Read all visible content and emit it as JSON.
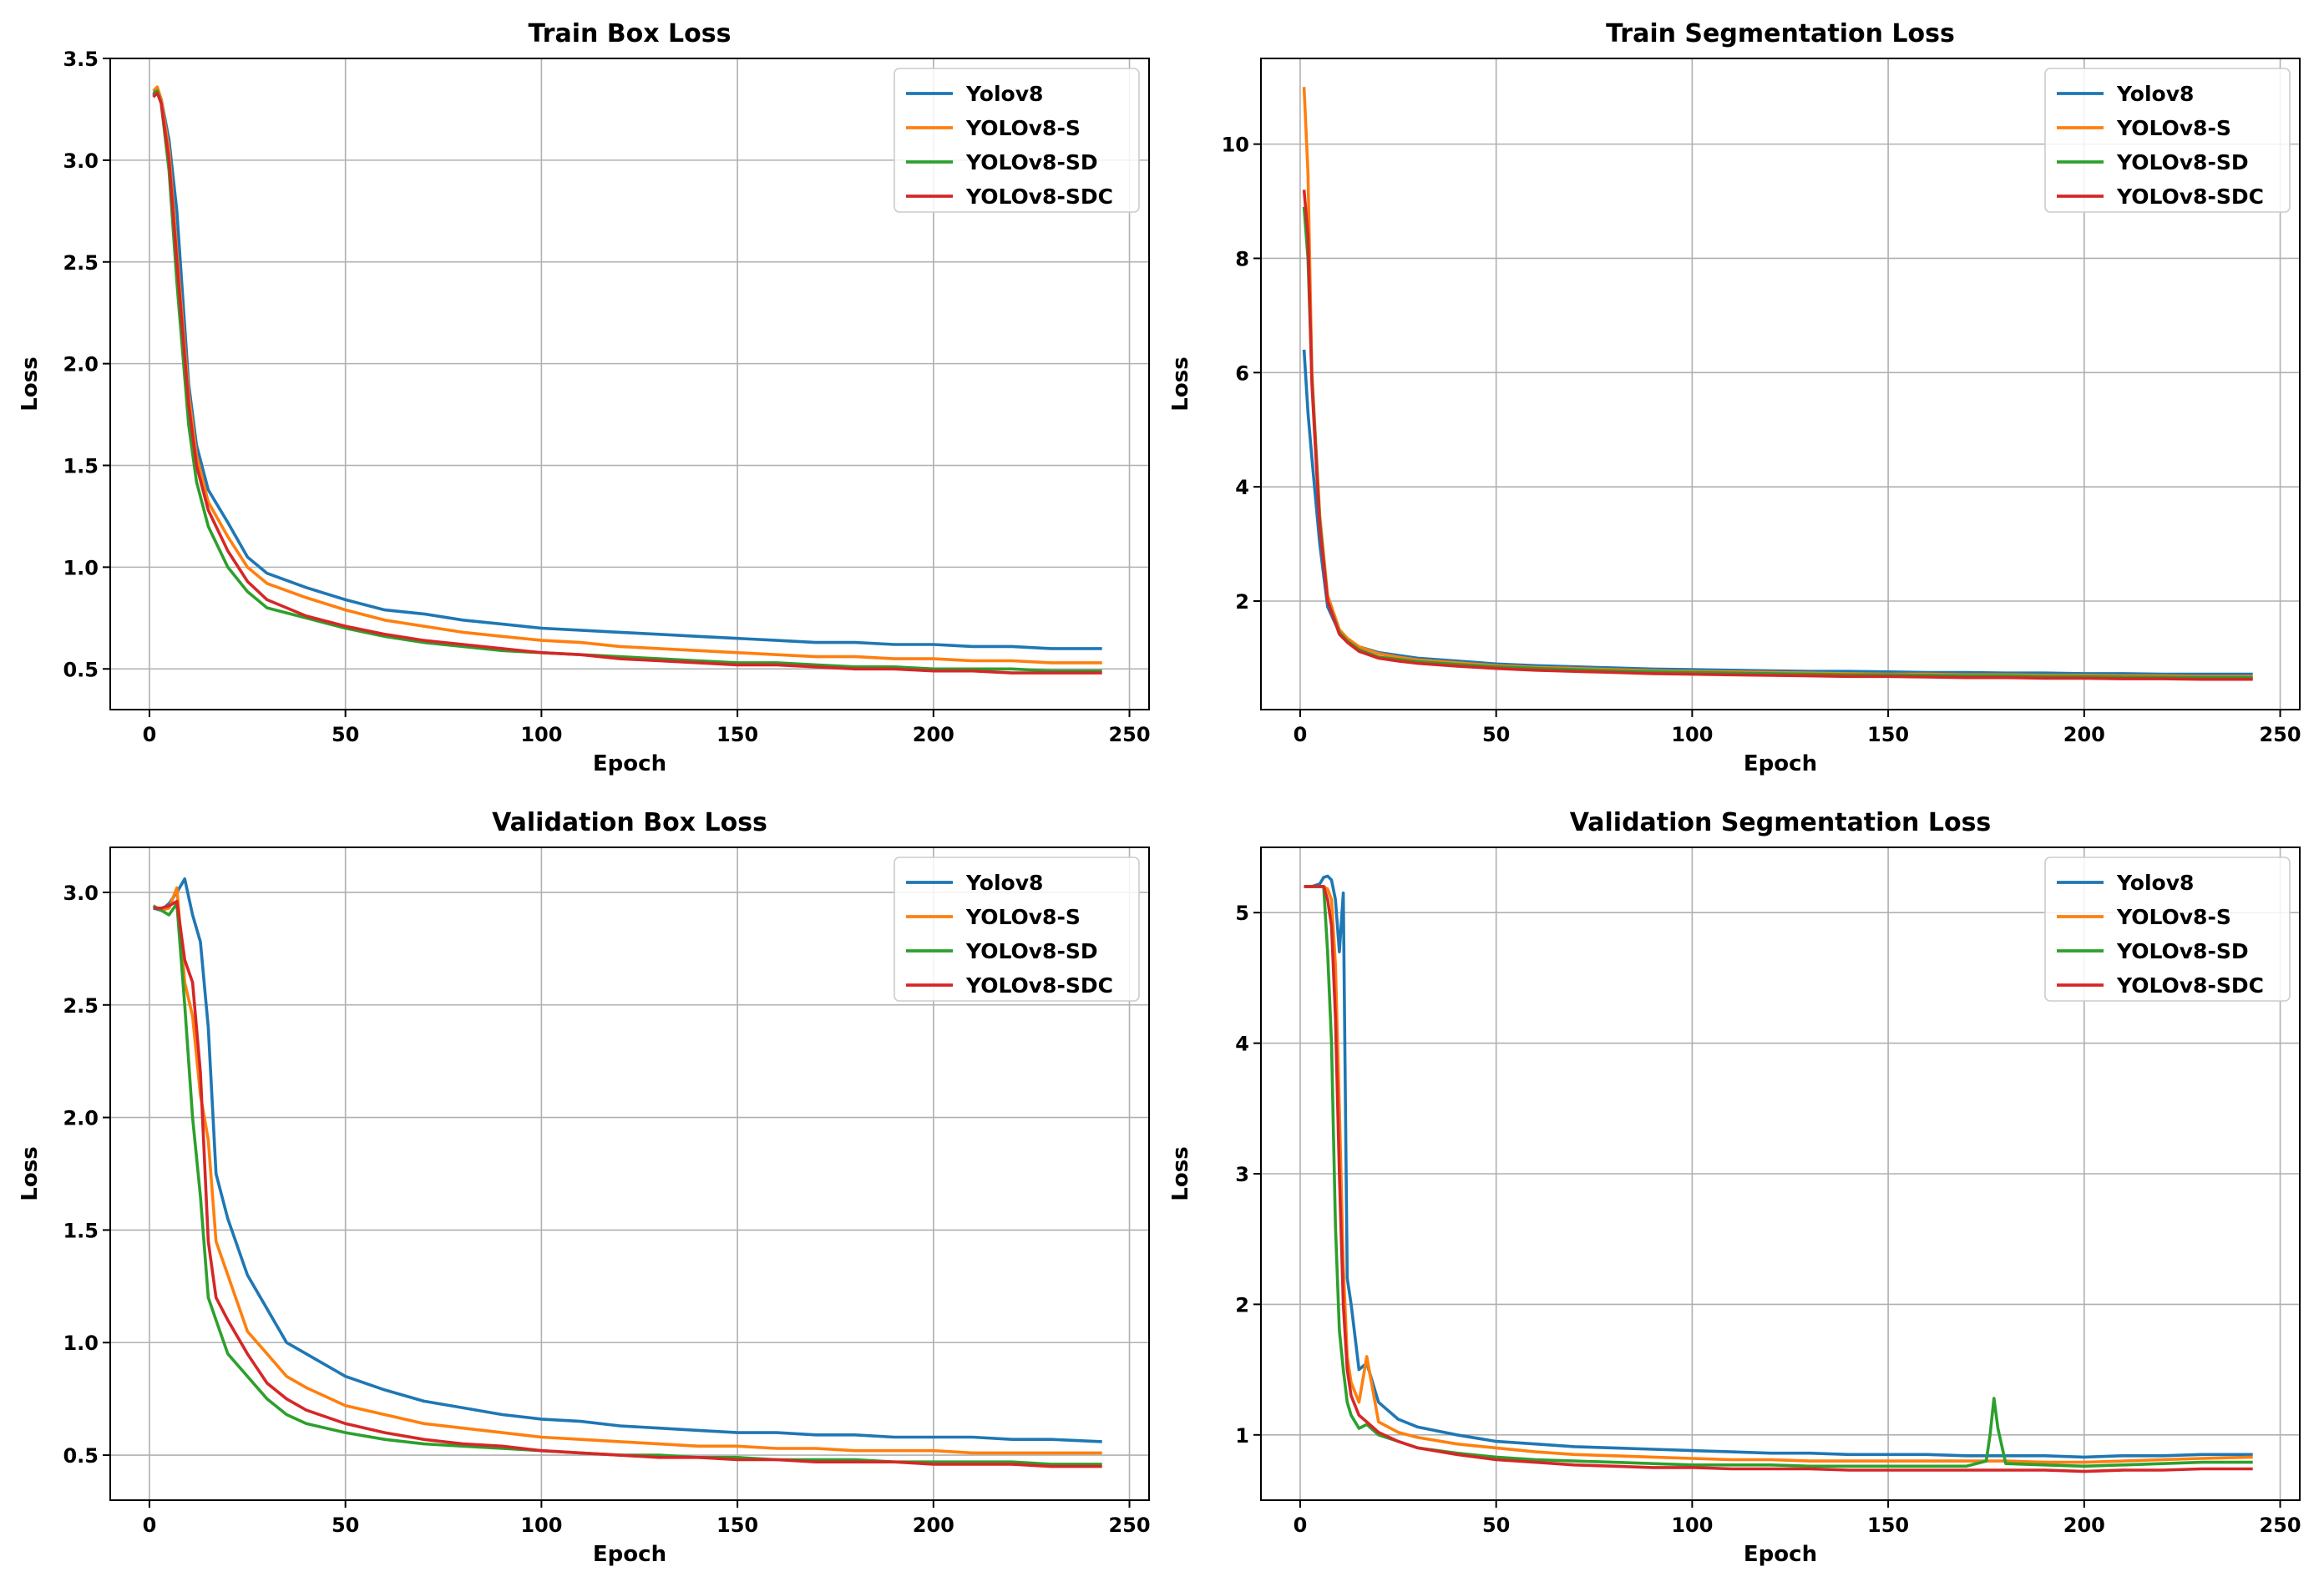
{
  "figure": {
    "colors": {
      "Yolov8": "#1f77b4",
      "YOLOv8-S": "#ff7f0e",
      "YOLOv8-SD": "#2ca02c",
      "YOLOv8-SDC": "#d62728"
    }
  },
  "chart_data": [
    {
      "type": "line",
      "title": "Train Box Loss",
      "xlabel": "Epoch",
      "ylabel": "Loss",
      "xlim": [
        -10,
        255
      ],
      "ylim": [
        0.3,
        3.5
      ],
      "xticks": [
        0,
        50,
        100,
        150,
        200,
        250
      ],
      "yticks": [
        0.5,
        1.0,
        1.5,
        2.0,
        2.5,
        3.0,
        3.5
      ],
      "ytick_labels": [
        "0.5",
        "1.0",
        "1.5",
        "2.0",
        "2.5",
        "3.0",
        "3.5"
      ],
      "grid": true,
      "legend": "top-right",
      "x": [
        1,
        2,
        3,
        5,
        7,
        10,
        12,
        15,
        20,
        25,
        30,
        40,
        50,
        60,
        70,
        80,
        90,
        100,
        110,
        120,
        130,
        140,
        150,
        160,
        170,
        180,
        190,
        200,
        210,
        220,
        230,
        243
      ],
      "series": [
        {
          "name": "Yolov8",
          "values": [
            3.32,
            3.35,
            3.3,
            3.1,
            2.75,
            1.9,
            1.6,
            1.38,
            1.22,
            1.05,
            0.97,
            0.9,
            0.84,
            0.79,
            0.77,
            0.74,
            0.72,
            0.7,
            0.69,
            0.68,
            0.67,
            0.66,
            0.65,
            0.64,
            0.63,
            0.63,
            0.62,
            0.62,
            0.61,
            0.61,
            0.6,
            0.6
          ]
        },
        {
          "name": "YOLOv8-S",
          "values": [
            3.34,
            3.36,
            3.3,
            3.05,
            2.55,
            1.85,
            1.55,
            1.32,
            1.15,
            1.0,
            0.92,
            0.85,
            0.79,
            0.74,
            0.71,
            0.68,
            0.66,
            0.64,
            0.63,
            0.61,
            0.6,
            0.59,
            0.58,
            0.57,
            0.56,
            0.56,
            0.55,
            0.55,
            0.54,
            0.54,
            0.53,
            0.53
          ]
        },
        {
          "name": "YOLOv8-SD",
          "values": [
            3.33,
            3.34,
            3.28,
            2.95,
            2.4,
            1.7,
            1.42,
            1.2,
            1.0,
            0.88,
            0.8,
            0.75,
            0.7,
            0.66,
            0.63,
            0.61,
            0.59,
            0.58,
            0.57,
            0.56,
            0.55,
            0.54,
            0.53,
            0.53,
            0.52,
            0.51,
            0.51,
            0.5,
            0.5,
            0.5,
            0.49,
            0.49
          ]
        },
        {
          "name": "YOLOv8-SDC",
          "values": [
            3.31,
            3.33,
            3.28,
            3.0,
            2.5,
            1.8,
            1.5,
            1.28,
            1.08,
            0.93,
            0.84,
            0.76,
            0.71,
            0.67,
            0.64,
            0.62,
            0.6,
            0.58,
            0.57,
            0.55,
            0.54,
            0.53,
            0.52,
            0.52,
            0.51,
            0.5,
            0.5,
            0.49,
            0.49,
            0.48,
            0.48,
            0.48
          ]
        }
      ]
    },
    {
      "type": "line",
      "title": "Train Segmentation Loss",
      "xlabel": "Epoch",
      "ylabel": "Loss",
      "xlim": [
        -10,
        255
      ],
      "ylim": [
        0.1,
        11.5
      ],
      "xticks": [
        0,
        50,
        100,
        150,
        200,
        250
      ],
      "yticks": [
        2,
        4,
        6,
        8,
        10
      ],
      "ytick_labels": [
        "2",
        "4",
        "6",
        "8",
        "10"
      ],
      "grid": true,
      "legend": "top-right",
      "x": [
        1,
        2,
        3,
        5,
        7,
        10,
        12,
        15,
        20,
        25,
        30,
        40,
        50,
        60,
        70,
        80,
        90,
        100,
        110,
        120,
        130,
        140,
        150,
        160,
        170,
        180,
        190,
        200,
        210,
        220,
        230,
        243
      ],
      "series": [
        {
          "name": "Yolov8",
          "values": [
            6.4,
            5.3,
            4.5,
            3.0,
            1.9,
            1.45,
            1.32,
            1.2,
            1.1,
            1.05,
            1.0,
            0.95,
            0.9,
            0.87,
            0.85,
            0.83,
            0.81,
            0.8,
            0.79,
            0.78,
            0.77,
            0.77,
            0.76,
            0.75,
            0.75,
            0.74,
            0.74,
            0.73,
            0.73,
            0.72,
            0.72,
            0.72
          ]
        },
        {
          "name": "YOLOv8-S",
          "values": [
            11.0,
            9.5,
            6.0,
            3.5,
            2.1,
            1.5,
            1.35,
            1.2,
            1.08,
            1.02,
            0.97,
            0.92,
            0.87,
            0.84,
            0.82,
            0.8,
            0.78,
            0.77,
            0.76,
            0.75,
            0.74,
            0.73,
            0.72,
            0.72,
            0.71,
            0.71,
            0.7,
            0.7,
            0.69,
            0.69,
            0.68,
            0.68
          ]
        },
        {
          "name": "YOLOv8-SD",
          "values": [
            8.9,
            8.0,
            5.9,
            3.4,
            2.0,
            1.45,
            1.3,
            1.15,
            1.02,
            0.98,
            0.94,
            0.89,
            0.85,
            0.82,
            0.8,
            0.78,
            0.76,
            0.75,
            0.74,
            0.73,
            0.72,
            0.71,
            0.71,
            0.7,
            0.69,
            0.69,
            0.68,
            0.68,
            0.67,
            0.67,
            0.66,
            0.66
          ]
        },
        {
          "name": "YOLOv8-SDC",
          "values": [
            9.2,
            8.4,
            5.8,
            3.3,
            2.0,
            1.42,
            1.28,
            1.12,
            1.0,
            0.95,
            0.91,
            0.86,
            0.82,
            0.79,
            0.77,
            0.75,
            0.73,
            0.72,
            0.71,
            0.7,
            0.69,
            0.68,
            0.68,
            0.67,
            0.66,
            0.66,
            0.65,
            0.65,
            0.64,
            0.64,
            0.63,
            0.63
          ]
        }
      ]
    },
    {
      "type": "line",
      "title": "Validation Box Loss",
      "xlabel": "Epoch",
      "ylabel": "Loss",
      "xlim": [
        -10,
        255
      ],
      "ylim": [
        0.3,
        3.2
      ],
      "xticks": [
        0,
        50,
        100,
        150,
        200,
        250
      ],
      "yticks": [
        0.5,
        1.0,
        1.5,
        2.0,
        2.5,
        3.0
      ],
      "ytick_labels": [
        "0.5",
        "1.0",
        "1.5",
        "2.0",
        "2.5",
        "3.0"
      ],
      "grid": true,
      "legend": "top-right",
      "x": [
        1,
        3,
        5,
        7,
        9,
        11,
        13,
        15,
        17,
        20,
        25,
        30,
        35,
        40,
        50,
        60,
        70,
        80,
        90,
        100,
        110,
        120,
        130,
        140,
        150,
        160,
        170,
        180,
        190,
        200,
        210,
        220,
        230,
        243
      ],
      "series": [
        {
          "name": "Yolov8",
          "values": [
            2.93,
            2.92,
            2.95,
            3.0,
            3.06,
            2.9,
            2.78,
            2.4,
            1.75,
            1.55,
            1.3,
            1.15,
            1.0,
            0.95,
            0.85,
            0.79,
            0.74,
            0.71,
            0.68,
            0.66,
            0.65,
            0.63,
            0.62,
            0.61,
            0.6,
            0.6,
            0.59,
            0.59,
            0.58,
            0.58,
            0.58,
            0.57,
            0.57,
            0.56
          ]
        },
        {
          "name": "YOLOv8-S",
          "values": [
            2.94,
            2.92,
            2.93,
            3.02,
            2.6,
            2.45,
            2.1,
            1.9,
            1.45,
            1.3,
            1.05,
            0.95,
            0.85,
            0.8,
            0.72,
            0.68,
            0.64,
            0.62,
            0.6,
            0.58,
            0.57,
            0.56,
            0.55,
            0.54,
            0.54,
            0.53,
            0.53,
            0.52,
            0.52,
            0.52,
            0.51,
            0.51,
            0.51,
            0.51
          ]
        },
        {
          "name": "YOLOv8-SD",
          "values": [
            2.94,
            2.92,
            2.9,
            2.95,
            2.5,
            2.0,
            1.65,
            1.2,
            1.1,
            0.95,
            0.85,
            0.75,
            0.68,
            0.64,
            0.6,
            0.57,
            0.55,
            0.54,
            0.53,
            0.52,
            0.51,
            0.5,
            0.5,
            0.49,
            0.49,
            0.48,
            0.48,
            0.48,
            0.47,
            0.47,
            0.47,
            0.47,
            0.46,
            0.46
          ]
        },
        {
          "name": "YOLOv8-SDC",
          "values": [
            2.93,
            2.93,
            2.94,
            2.96,
            2.7,
            2.6,
            2.2,
            1.45,
            1.2,
            1.1,
            0.95,
            0.82,
            0.75,
            0.7,
            0.64,
            0.6,
            0.57,
            0.55,
            0.54,
            0.52,
            0.51,
            0.5,
            0.49,
            0.49,
            0.48,
            0.48,
            0.47,
            0.47,
            0.47,
            0.46,
            0.46,
            0.46,
            0.45,
            0.45
          ]
        }
      ]
    },
    {
      "type": "line",
      "title": "Validation Segmentation Loss",
      "xlabel": "Epoch",
      "ylabel": "Loss",
      "xlim": [
        -10,
        255
      ],
      "ylim": [
        0.5,
        5.5
      ],
      "xticks": [
        0,
        50,
        100,
        150,
        200,
        250
      ],
      "yticks": [
        1,
        2,
        3,
        4,
        5
      ],
      "ytick_labels": [
        "1",
        "2",
        "3",
        "4",
        "5"
      ],
      "grid": true,
      "legend": "top-right",
      "x": [
        1,
        3,
        5,
        6,
        7,
        8,
        9,
        10,
        11,
        12,
        13,
        15,
        17,
        20,
        25,
        30,
        40,
        50,
        60,
        70,
        80,
        90,
        100,
        110,
        120,
        130,
        140,
        150,
        160,
        170,
        175,
        176,
        177,
        178,
        180,
        190,
        200,
        210,
        220,
        230,
        243
      ],
      "series": [
        {
          "name": "Yolov8",
          "values": [
            5.2,
            5.2,
            5.22,
            5.27,
            5.28,
            5.25,
            5.1,
            4.7,
            5.15,
            2.2,
            2.0,
            1.5,
            1.55,
            1.25,
            1.12,
            1.06,
            1.0,
            0.95,
            0.93,
            0.91,
            0.9,
            0.89,
            0.88,
            0.87,
            0.86,
            0.86,
            0.85,
            0.85,
            0.85,
            0.84,
            0.84,
            0.84,
            0.84,
            0.84,
            0.84,
            0.84,
            0.83,
            0.84,
            0.84,
            0.85,
            0.85
          ]
        },
        {
          "name": "YOLOv8-S",
          "values": [
            5.2,
            5.2,
            5.2,
            5.2,
            5.18,
            5.1,
            4.6,
            3.5,
            2.3,
            1.6,
            1.4,
            1.25,
            1.6,
            1.1,
            1.02,
            0.98,
            0.93,
            0.9,
            0.87,
            0.85,
            0.84,
            0.83,
            0.82,
            0.81,
            0.81,
            0.8,
            0.8,
            0.8,
            0.8,
            0.8,
            0.8,
            0.8,
            0.8,
            0.8,
            0.8,
            0.79,
            0.79,
            0.8,
            0.81,
            0.82,
            0.83
          ]
        },
        {
          "name": "YOLOv8-SD",
          "values": [
            5.2,
            5.2,
            5.2,
            5.2,
            4.7,
            4.0,
            2.6,
            1.8,
            1.5,
            1.25,
            1.15,
            1.05,
            1.08,
            1.0,
            0.95,
            0.9,
            0.86,
            0.83,
            0.81,
            0.8,
            0.79,
            0.78,
            0.77,
            0.77,
            0.77,
            0.76,
            0.76,
            0.76,
            0.76,
            0.76,
            0.8,
            1.0,
            1.28,
            1.05,
            0.78,
            0.77,
            0.76,
            0.77,
            0.78,
            0.79,
            0.79
          ]
        },
        {
          "name": "YOLOv8-SDC",
          "values": [
            5.2,
            5.2,
            5.2,
            5.2,
            5.1,
            4.9,
            4.2,
            3.0,
            2.0,
            1.5,
            1.3,
            1.15,
            1.1,
            1.02,
            0.95,
            0.9,
            0.85,
            0.81,
            0.79,
            0.77,
            0.76,
            0.75,
            0.75,
            0.74,
            0.74,
            0.74,
            0.73,
            0.73,
            0.73,
            0.73,
            0.73,
            0.73,
            0.73,
            0.73,
            0.73,
            0.73,
            0.72,
            0.73,
            0.73,
            0.74,
            0.74
          ]
        }
      ]
    }
  ]
}
